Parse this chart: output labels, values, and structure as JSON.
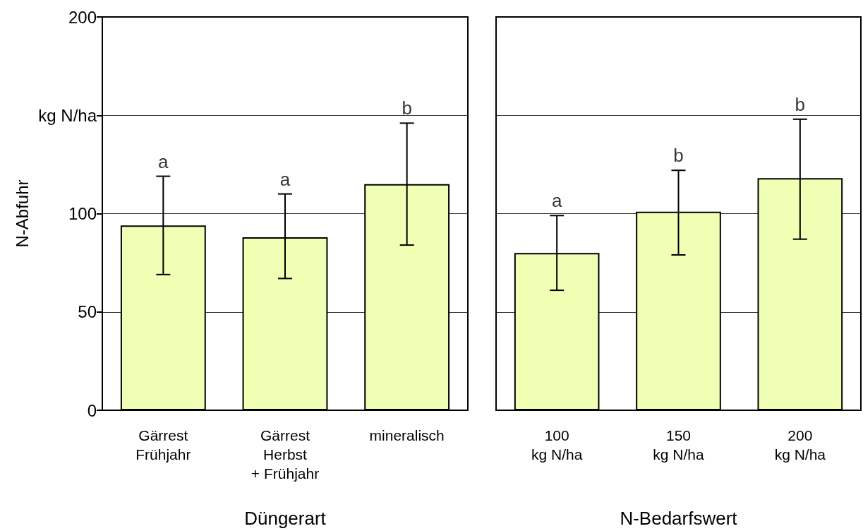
{
  "chart_data": [
    {
      "type": "bar",
      "categories": [
        "Gärrest\nFrühjahr",
        "Gärrest\nHerbst\n+ Frühjahr",
        "mineralisch"
      ],
      "values": [
        94,
        88,
        115
      ],
      "color": "#efffb3",
      "errors": [
        [
          69,
          119
        ],
        [
          67,
          110
        ],
        [
          84,
          146
        ]
      ],
      "xlabel": "Düngerart",
      "ylabel": "N-Abfuhr",
      "ylim": [
        0,
        200
      ],
      "yticks": [
        0,
        50,
        100,
        {
          "value": 150,
          "label": "kg N/ha"
        },
        200
      ],
      "grid": "y",
      "annotations": [
        {
          "text": "a",
          "x": "Gärrest\nFrühjahr",
          "y": 119
        },
        {
          "text": "a",
          "x": "Gärrest\nHerbst\n+ Frühjahr",
          "y": 110
        },
        {
          "text": "b",
          "x": "mineralisch",
          "y": 146
        }
      ]
    },
    {
      "type": "bar",
      "categories": [
        "100\nkg N/ha",
        "150\nkg N/ha",
        "200\nkg N/ha"
      ],
      "values": [
        80,
        101,
        118
      ],
      "color": "#efffb3",
      "errors": [
        [
          61,
          99
        ],
        [
          79,
          122
        ],
        [
          87,
          148
        ]
      ],
      "xlabel": "N-Bedarfswert",
      "ylim": [
        0,
        200
      ],
      "yticks": [
        0,
        50,
        100,
        150,
        200
      ],
      "grid": "y",
      "tick_labels": "x",
      "annotations": [
        {
          "text": "a",
          "x": "100\nkg N/ha",
          "y": 99
        },
        {
          "text": "b",
          "x": "150\nkg N/ha",
          "y": 122
        },
        {
          "text": "b",
          "x": "200\nkg N/ha",
          "y": 148
        }
      ]
    }
  ]
}
